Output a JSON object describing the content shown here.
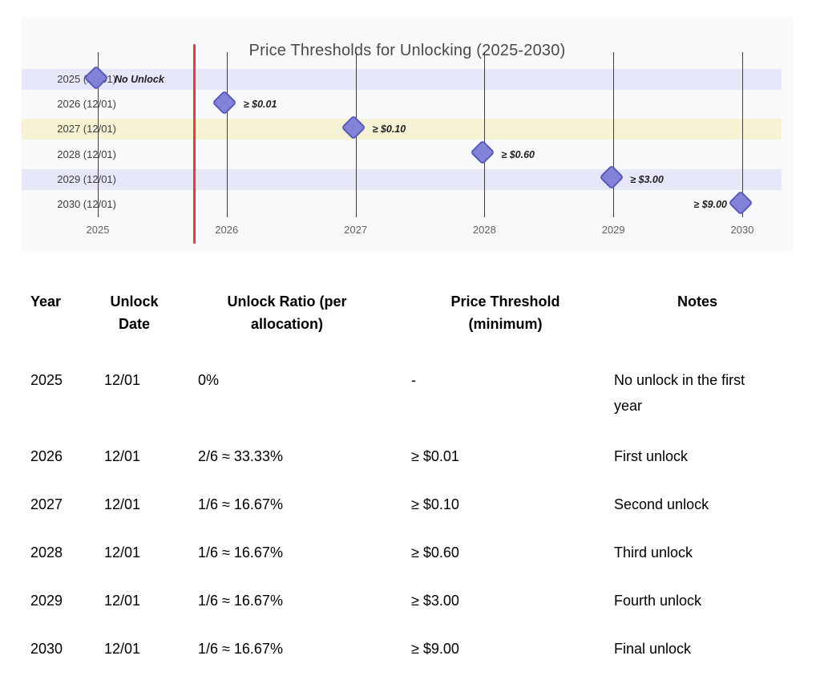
{
  "chart_data": {
    "type": "scatter",
    "title": "Price Thresholds for Unlocking (2025-2030)",
    "xlabel": "",
    "ylabel": "",
    "grid": "vertical-only",
    "legend": "off",
    "x_ticks": [
      2025,
      2026,
      2027,
      2028,
      2029,
      2030
    ],
    "y_categories": [
      "2025 (12/01)",
      "2026 (12/01)",
      "2027 (12/01)",
      "2028 (12/01)",
      "2029 (12/01)",
      "2030 (12/01)"
    ],
    "current_date_line_x": 2025.75,
    "row_stripes": [
      "lavender",
      "none",
      "yellow",
      "none",
      "lavender",
      "none"
    ],
    "series": [
      {
        "name": "unlock-events",
        "marker": "diamond",
        "points": [
          {
            "x": 2025,
            "y": "2025 (12/01)",
            "label": "No Unlock",
            "label_side": "right"
          },
          {
            "x": 2026,
            "y": "2026 (12/01)",
            "label": "≥ $0.01",
            "label_side": "right"
          },
          {
            "x": 2027,
            "y": "2027 (12/01)",
            "label": "≥ $0.10",
            "label_side": "right"
          },
          {
            "x": 2028,
            "y": "2028 (12/01)",
            "label": "≥ $0.60",
            "label_side": "right"
          },
          {
            "x": 2029,
            "y": "2029 (12/01)",
            "label": "≥ $3.00",
            "label_side": "right"
          },
          {
            "x": 2030,
            "y": "2030 (12/01)",
            "label": "≥ $9.00",
            "label_side": "left"
          }
        ]
      }
    ],
    "colors": {
      "plot_background": "#f8f9fa",
      "stripe_lavender": "#e6e7f8",
      "stripe_yellow": "#f6f3d4",
      "gridline": "#3f3f3f",
      "marker_fill": "#8282d8",
      "marker_border": "#5a5abb",
      "current_date_line": "#ee3b2c",
      "title": "#4a4a4a"
    }
  },
  "table": {
    "headers": [
      "Year",
      "Unlock Date",
      "Unlock Ratio (per allocation)",
      "Price Threshold (minimum)",
      "Notes"
    ],
    "rows": [
      {
        "year": "2025",
        "unlock_date": "12/01",
        "unlock_ratio": "0%",
        "price_threshold": "-",
        "notes": "No unlock in the first year"
      },
      {
        "year": "2026",
        "unlock_date": "12/01",
        "unlock_ratio": "2/6 ≈ 33.33%",
        "price_threshold": "≥ $0.01",
        "notes": "First unlock"
      },
      {
        "year": "2027",
        "unlock_date": "12/01",
        "unlock_ratio": "1/6 ≈ 16.67%",
        "price_threshold": "≥ $0.10",
        "notes": "Second unlock"
      },
      {
        "year": "2028",
        "unlock_date": "12/01",
        "unlock_ratio": "1/6 ≈ 16.67%",
        "price_threshold": "≥ $0.60",
        "notes": "Third unlock"
      },
      {
        "year": "2029",
        "unlock_date": "12/01",
        "unlock_ratio": "1/6 ≈ 16.67%",
        "price_threshold": "≥ $3.00",
        "notes": "Fourth unlock"
      },
      {
        "year": "2030",
        "unlock_date": "12/01",
        "unlock_ratio": "1/6 ≈ 16.67%",
        "price_threshold": "≥ $9.00",
        "notes": "Final unlock"
      }
    ]
  }
}
